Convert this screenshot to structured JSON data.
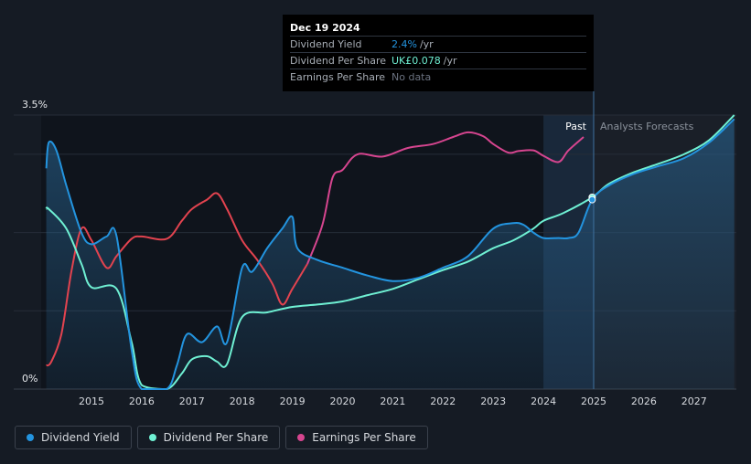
{
  "tooltip": {
    "date": "Dec 19 2024",
    "rows": [
      {
        "label": "Dividend Yield",
        "value": "2.4%",
        "unit": "/yr"
      },
      {
        "label": "Dividend Per Share",
        "value": "UK£0.078",
        "unit": "/yr"
      },
      {
        "label": "Earnings Per Share",
        "value": "No data",
        "unit": ""
      }
    ]
  },
  "labels": {
    "past": "Past",
    "forecast": "Analysts Forecasts"
  },
  "legend": [
    {
      "label": "Dividend Yield",
      "color": "#2394df"
    },
    {
      "label": "Dividend Per Share",
      "color": "#6ff0d3"
    },
    {
      "label": "Earnings Per Share",
      "color": "#d6458f"
    }
  ],
  "chart_data": {
    "type": "line",
    "title": "",
    "xlabel": "",
    "ylabel": "",
    "y_tick_labels": [
      "3.5%",
      "0%"
    ],
    "ylim": [
      0,
      3.5
    ],
    "xlim": [
      2014.1,
      2027.8
    ],
    "x_ticks": [
      2015,
      2016,
      2017,
      2018,
      2019,
      2020,
      2021,
      2022,
      2023,
      2024,
      2025,
      2026,
      2027
    ],
    "past_region_start": 2024.0,
    "forecast_start": 2025.0,
    "series": [
      {
        "name": "Dividend Yield",
        "color": "#2394df",
        "x": [
          2014.1,
          2014.15,
          2014.3,
          2014.5,
          2014.8,
          2015.0,
          2015.3,
          2015.5,
          2015.8,
          2016.0,
          2016.5,
          2016.7,
          2016.9,
          2017.2,
          2017.5,
          2017.7,
          2018.0,
          2018.2,
          2018.5,
          2018.8,
          2019.0,
          2019.1,
          2019.5,
          2020.0,
          2020.5,
          2021.0,
          2021.5,
          2022.0,
          2022.5,
          2023.0,
          2023.4,
          2023.6,
          2023.8,
          2024.0,
          2024.3,
          2024.5,
          2024.7,
          2024.97,
          2025.3,
          2025.8,
          2026.3,
          2026.8,
          2027.3,
          2027.8
        ],
        "values": [
          2.82,
          3.15,
          3.05,
          2.6,
          2.0,
          1.85,
          1.95,
          1.95,
          0.5,
          0.0,
          0.0,
          0.3,
          0.7,
          0.6,
          0.8,
          0.6,
          1.55,
          1.5,
          1.8,
          2.05,
          2.2,
          1.8,
          1.65,
          1.55,
          1.45,
          1.38,
          1.42,
          1.55,
          1.7,
          2.05,
          2.12,
          2.1,
          2.0,
          1.93,
          1.93,
          1.93,
          2.0,
          2.42,
          2.6,
          2.75,
          2.85,
          2.95,
          3.15,
          3.45
        ]
      },
      {
        "name": "Dividend Per Share",
        "color": "#6ff0d3",
        "x": [
          2014.1,
          2014.15,
          2014.5,
          2014.8,
          2015.0,
          2015.5,
          2015.8,
          2016.0,
          2016.5,
          2016.8,
          2017.0,
          2017.3,
          2017.5,
          2017.7,
          2018.0,
          2018.5,
          2019.0,
          2019.5,
          2020.0,
          2020.5,
          2021.0,
          2021.5,
          2022.0,
          2022.5,
          2023.0,
          2023.4,
          2023.8,
          2024.0,
          2024.4,
          2024.97,
          2025.3,
          2025.8,
          2026.3,
          2026.8,
          2027.3,
          2027.8
        ],
        "values": [
          2.3,
          2.3,
          2.05,
          1.6,
          1.3,
          1.28,
          0.6,
          0.05,
          0.0,
          0.2,
          0.38,
          0.42,
          0.35,
          0.32,
          0.92,
          0.98,
          1.05,
          1.08,
          1.12,
          1.2,
          1.28,
          1.4,
          1.52,
          1.63,
          1.8,
          1.9,
          2.05,
          2.15,
          2.25,
          2.45,
          2.62,
          2.77,
          2.88,
          3.0,
          3.18,
          3.5
        ]
      },
      {
        "name": "Earnings Per Share",
        "color": "#d6458f",
        "x": [
          2014.1,
          2014.2,
          2014.4,
          2014.6,
          2014.8,
          2015.0,
          2015.3,
          2015.5,
          2015.8,
          2016.0,
          2016.5,
          2016.8,
          2017.0,
          2017.3,
          2017.5,
          2017.7,
          2018.0,
          2018.3,
          2018.6,
          2018.8,
          2019.0,
          2019.3,
          2019.6,
          2019.8,
          2020.0,
          2020.3,
          2020.8,
          2021.3,
          2021.8,
          2022.2,
          2022.5,
          2022.8,
          2023.0,
          2023.3,
          2023.5,
          2023.8,
          2024.0,
          2024.3,
          2024.5,
          2024.8
        ],
        "values": [
          0.3,
          0.35,
          0.7,
          1.5,
          2.05,
          1.9,
          1.55,
          1.7,
          1.92,
          1.95,
          1.92,
          2.15,
          2.3,
          2.42,
          2.5,
          2.3,
          1.9,
          1.65,
          1.35,
          1.08,
          1.28,
          1.6,
          2.1,
          2.7,
          2.8,
          3.0,
          2.97,
          3.08,
          3.13,
          3.22,
          3.28,
          3.23,
          3.13,
          3.02,
          3.04,
          3.05,
          2.98,
          2.9,
          3.05,
          3.22
        ]
      }
    ]
  }
}
